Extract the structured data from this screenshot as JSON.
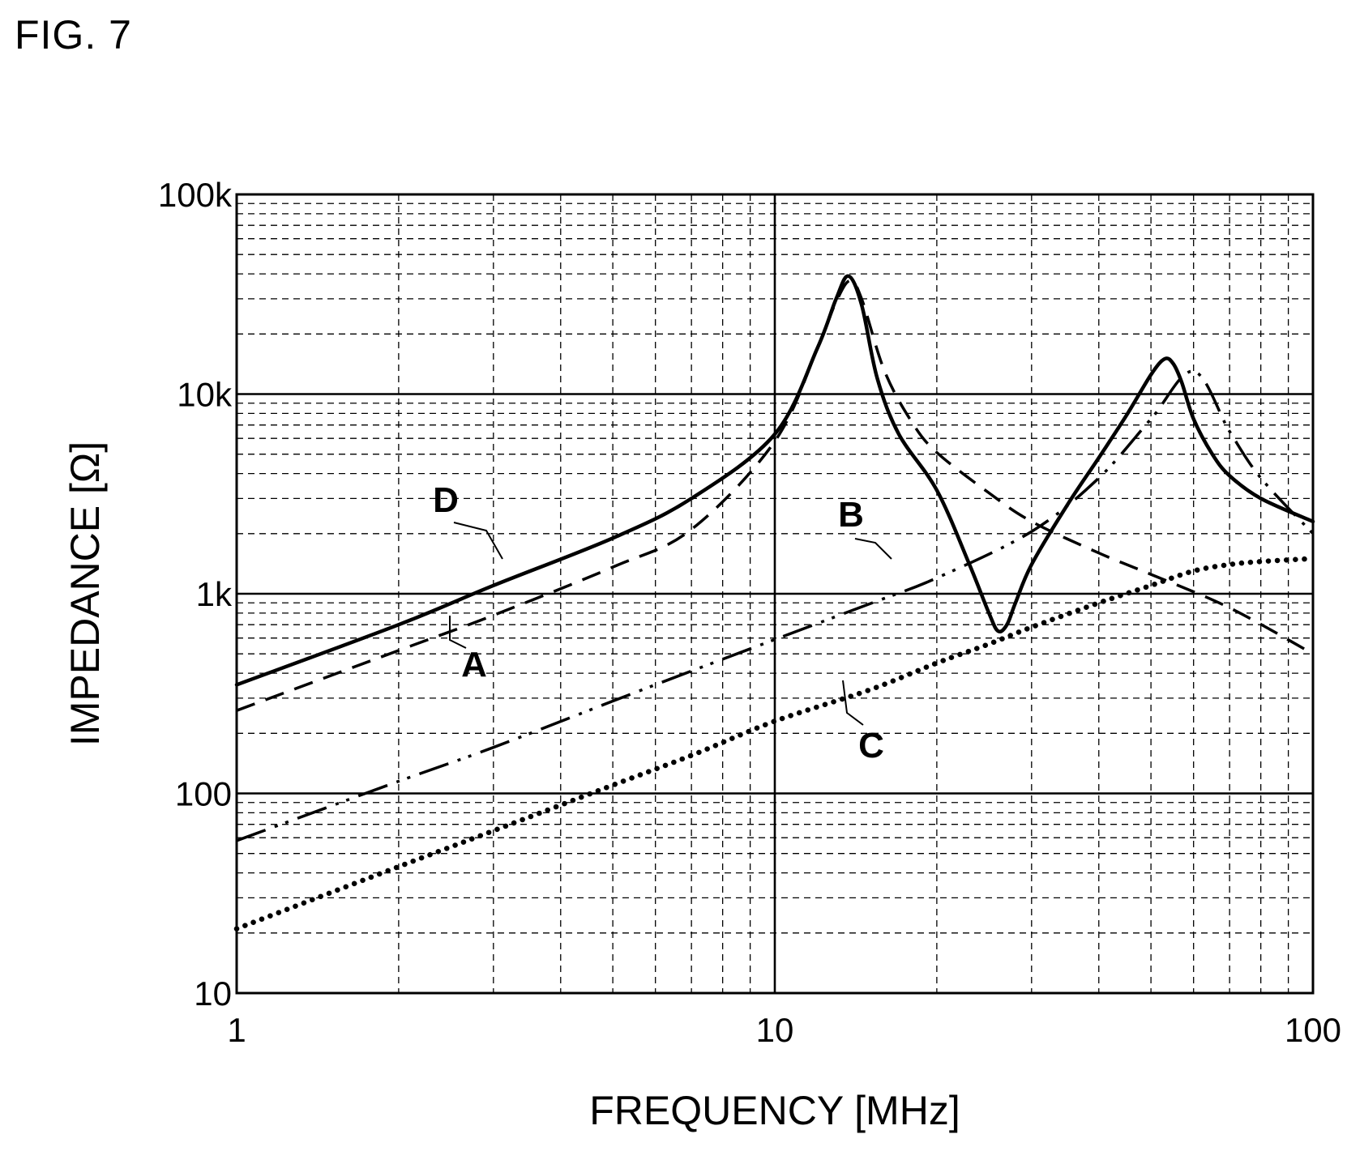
{
  "figure_label": "FIG. 7",
  "chart_data": {
    "type": "line",
    "title": "",
    "xlabel": "FREQUENCY [MHz]",
    "ylabel": "IMPEDANCE [Ω]",
    "x_scale": "log",
    "y_scale": "log",
    "xlim": [
      1,
      100
    ],
    "ylim": [
      10,
      100000
    ],
    "x_ticks": [
      {
        "value": 1,
        "label": "1"
      },
      {
        "value": 10,
        "label": "10"
      },
      {
        "value": 100,
        "label": "100"
      }
    ],
    "y_ticks": [
      {
        "value": 10,
        "label": "10"
      },
      {
        "value": 100,
        "label": "100"
      },
      {
        "value": 1000,
        "label": "1k"
      },
      {
        "value": 10000,
        "label": "10k"
      },
      {
        "value": 100000,
        "label": "100k"
      }
    ],
    "grid": {
      "major": "solid",
      "minor": "dashed"
    },
    "series": [
      {
        "name": "A",
        "style": "dashed",
        "x": [
          1,
          2,
          3,
          5,
          7,
          10,
          12,
          13,
          13.8,
          14.5,
          16,
          18,
          20,
          25,
          30,
          40,
          50,
          70,
          100
        ],
        "y": [
          260,
          520,
          780,
          1360,
          2100,
          5800,
          17000,
          29000,
          37000,
          30000,
          13000,
          7200,
          5100,
          3200,
          2300,
          1600,
          1250,
          850,
          500
        ]
      },
      {
        "name": "B",
        "style": "dash-dot-dot",
        "x": [
          1,
          2,
          3,
          5,
          7,
          10,
          15,
          20,
          30,
          40,
          50,
          60,
          70,
          80,
          100
        ],
        "y": [
          58,
          115,
          170,
          290,
          410,
          590,
          890,
          1200,
          2050,
          3800,
          7500,
          13000,
          6500,
          3800,
          2000
        ]
      },
      {
        "name": "C",
        "style": "dotted",
        "x": [
          1,
          2,
          3,
          5,
          7,
          10,
          15,
          20,
          25,
          30,
          40,
          50,
          60,
          70,
          80,
          100
        ],
        "y": [
          21,
          43,
          65,
          110,
          155,
          230,
          330,
          450,
          560,
          680,
          900,
          1100,
          1300,
          1400,
          1450,
          1500
        ]
      },
      {
        "name": "D",
        "style": "solid",
        "x": [
          1,
          2,
          3,
          5,
          7,
          10,
          12,
          13,
          13.7,
          14.5,
          15.5,
          17,
          20,
          23,
          25,
          26,
          27,
          28,
          30,
          35,
          40,
          45,
          50,
          53,
          55,
          57,
          60,
          65,
          70,
          80,
          100
        ],
        "y": [
          350,
          700,
          1100,
          1900,
          3000,
          6300,
          17000,
          30000,
          39000,
          28000,
          12000,
          6300,
          3300,
          1400,
          800,
          650,
          700,
          900,
          1400,
          2800,
          4800,
          7800,
          12500,
          15000,
          14200,
          11500,
          7500,
          5000,
          3900,
          3000,
          2300
        ]
      }
    ],
    "annotations": [
      {
        "text": "A",
        "series": "A"
      },
      {
        "text": "B",
        "series": "B"
      },
      {
        "text": "C",
        "series": "C"
      },
      {
        "text": "D",
        "series": "D"
      }
    ]
  }
}
